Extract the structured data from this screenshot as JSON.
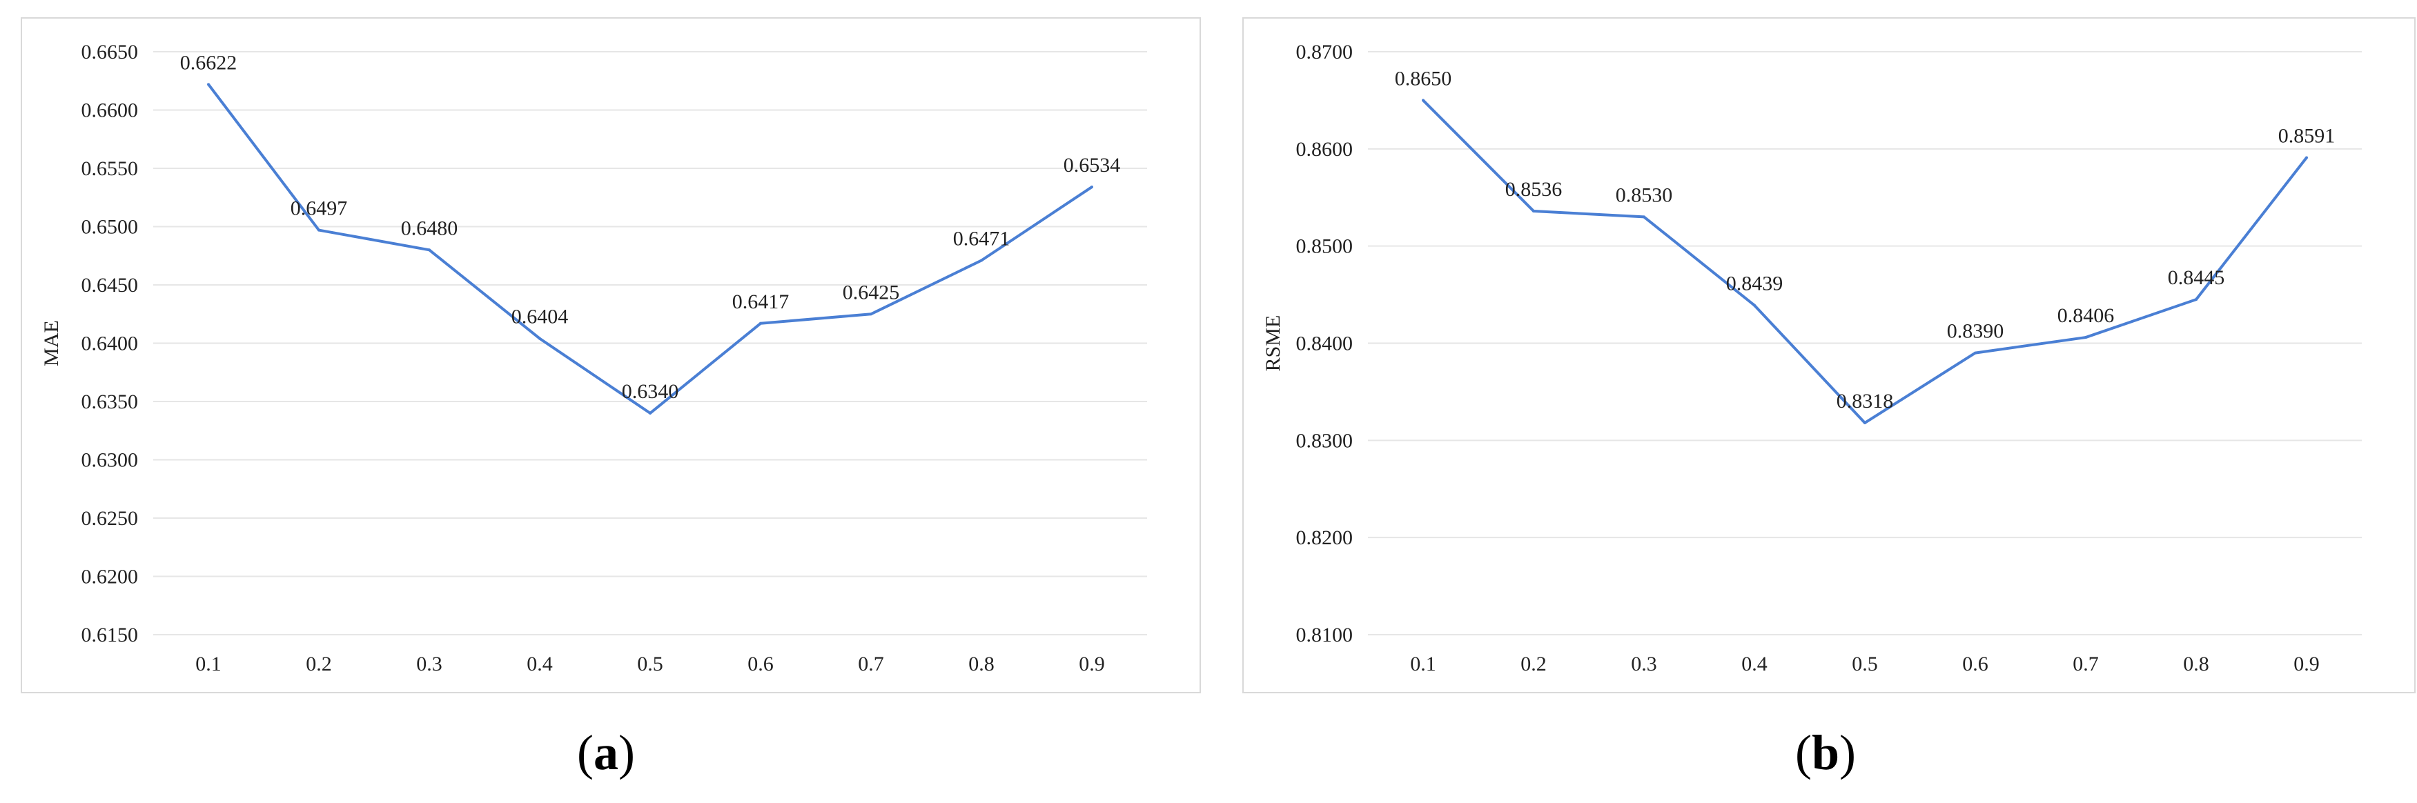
{
  "chart_data": [
    {
      "type": "line",
      "panel_label": "a",
      "ylabel": "MAE",
      "xlabel": "",
      "categories": [
        "0.1",
        "0.2",
        "0.3",
        "0.4",
        "0.5",
        "0.6",
        "0.7",
        "0.8",
        "0.9"
      ],
      "series": [
        {
          "values": [
            0.6622,
            0.6497,
            0.648,
            0.6404,
            0.634,
            0.6417,
            0.6425,
            0.6471,
            0.6534
          ]
        }
      ],
      "data_labels": [
        "0.6622",
        "0.6497",
        "0.6480",
        "0.6404",
        "0.6340",
        "0.6417",
        "0.6425",
        "0.6471",
        "0.6534"
      ],
      "ylim": [
        0.615,
        0.665
      ],
      "yticks": [
        "0.6150",
        "0.6200",
        "0.6250",
        "0.6300",
        "0.6350",
        "0.6400",
        "0.6450",
        "0.6500",
        "0.6550",
        "0.6600",
        "0.6650"
      ],
      "grid": true,
      "line_color": "#4a7fd4",
      "grid_color": "#e6e6e6"
    },
    {
      "type": "line",
      "panel_label": "b",
      "ylabel": "RSME",
      "xlabel": "",
      "categories": [
        "0.1",
        "0.2",
        "0.3",
        "0.4",
        "0.5",
        "0.6",
        "0.7",
        "0.8",
        "0.9"
      ],
      "series": [
        {
          "values": [
            0.865,
            0.8536,
            0.853,
            0.8439,
            0.8318,
            0.839,
            0.8406,
            0.8445,
            0.8591
          ]
        }
      ],
      "data_labels": [
        "0.8650",
        "0.8536",
        "0.8530",
        "0.8439",
        "0.8318",
        "0.8390",
        "0.8406",
        "0.8445",
        "0.8591"
      ],
      "ylim": [
        0.81,
        0.87
      ],
      "yticks": [
        "0.8100",
        "0.8200",
        "0.8300",
        "0.8400",
        "0.8500",
        "0.8600",
        "0.8700"
      ],
      "grid": true,
      "line_color": "#4a7fd4",
      "grid_color": "#e6e6e6"
    }
  ],
  "captions": {
    "a": "a",
    "b": "b"
  }
}
